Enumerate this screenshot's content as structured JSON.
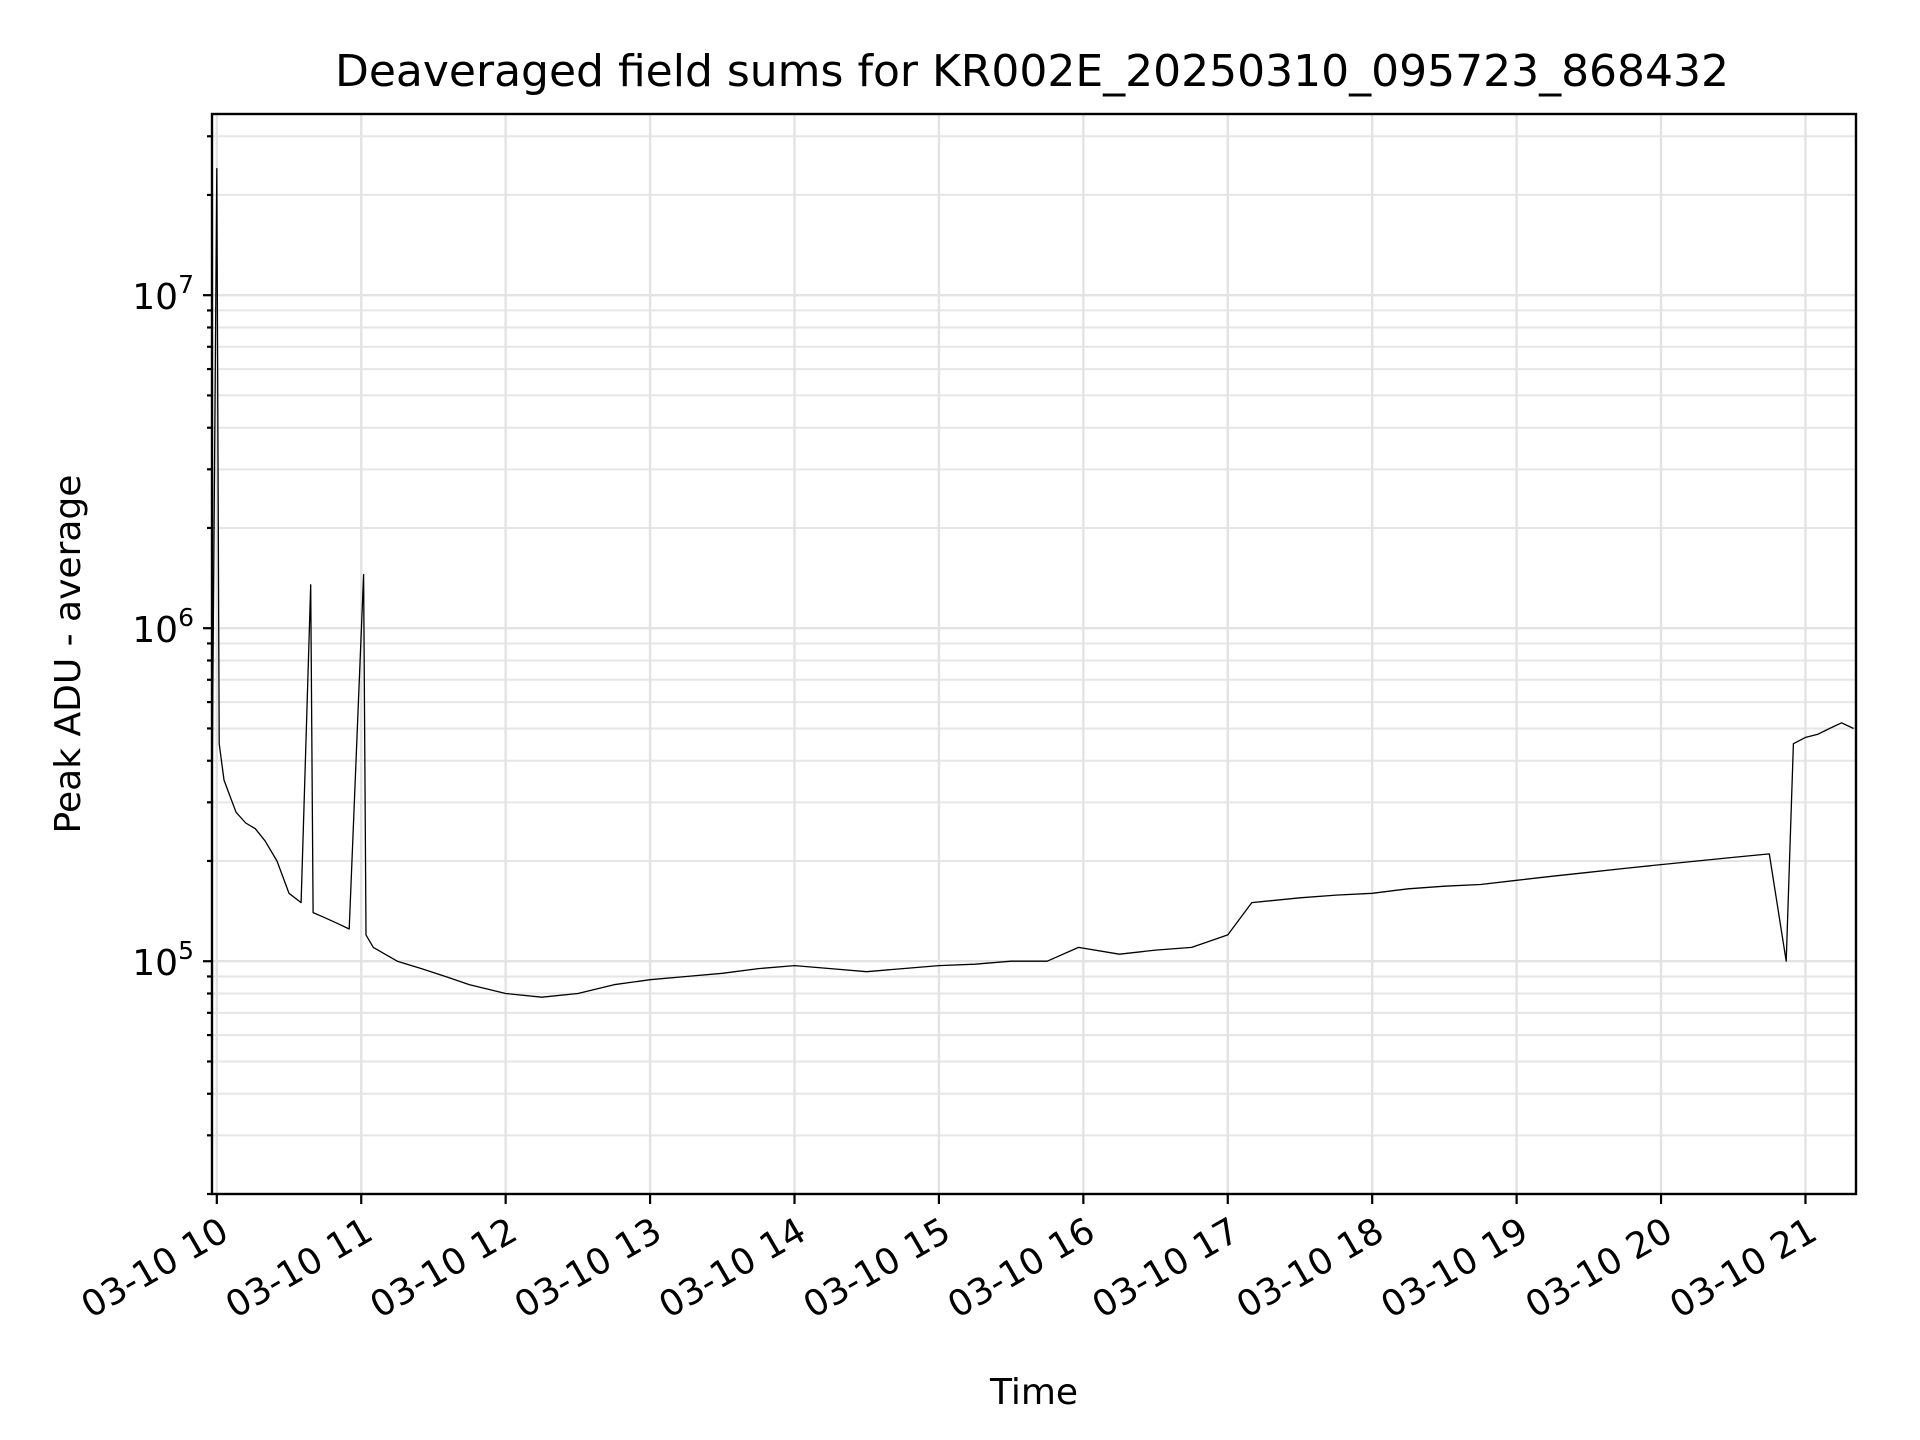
{
  "chart_data": {
    "type": "line",
    "title": "Deaveraged field sums for KR002E_20250310_095723_868432",
    "xlabel": "Time",
    "ylabel": "Peak ADU - average",
    "yscale": "log",
    "ylim": [
      20000,
      35000000
    ],
    "xlim": [
      "2025-03-10 09:58",
      "2025-03-10 21:21"
    ],
    "x_tick_labels": [
      "03-10 10",
      "03-10 11",
      "03-10 12",
      "03-10 13",
      "03-10 14",
      "03-10 15",
      "03-10 16",
      "03-10 17",
      "03-10 18",
      "03-10 19",
      "03-10 20",
      "03-10 21"
    ],
    "y_ticks": [
      {
        "value": 100000,
        "base": "10",
        "exp": "5"
      },
      {
        "value": 1000000,
        "base": "10",
        "exp": "6"
      },
      {
        "value": 10000000,
        "base": "10",
        "exp": "7"
      }
    ],
    "grid": true,
    "legend": "none",
    "line_color": "#000000",
    "series": [
      {
        "x": [
          "2025-03-10 09:58",
          "2025-03-10 10:00",
          "2025-03-10 10:01",
          "2025-03-10 10:03",
          "2025-03-10 10:05",
          "2025-03-10 10:08",
          "2025-03-10 10:12",
          "2025-03-10 10:16",
          "2025-03-10 10:20",
          "2025-03-10 10:25",
          "2025-03-10 10:30",
          "2025-03-10 10:35",
          "2025-03-10 10:39",
          "2025-03-10 10:40",
          "2025-03-10 10:45",
          "2025-03-10 10:50",
          "2025-03-10 10:55",
          "2025-03-10 11:01",
          "2025-03-10 11:02",
          "2025-03-10 11:05",
          "2025-03-10 11:15",
          "2025-03-10 11:25",
          "2025-03-10 11:35",
          "2025-03-10 11:45",
          "2025-03-10 12:00",
          "2025-03-10 12:15",
          "2025-03-10 12:30",
          "2025-03-10 12:45",
          "2025-03-10 13:00",
          "2025-03-10 13:15",
          "2025-03-10 13:30",
          "2025-03-10 13:45",
          "2025-03-10 14:00",
          "2025-03-10 14:15",
          "2025-03-10 14:30",
          "2025-03-10 14:45",
          "2025-03-10 15:00",
          "2025-03-10 15:15",
          "2025-03-10 15:30",
          "2025-03-10 15:45",
          "2025-03-10 15:58",
          "2025-03-10 16:15",
          "2025-03-10 16:30",
          "2025-03-10 16:45",
          "2025-03-10 17:00",
          "2025-03-10 17:10",
          "2025-03-10 17:30",
          "2025-03-10 17:45",
          "2025-03-10 18:00",
          "2025-03-10 18:15",
          "2025-03-10 18:30",
          "2025-03-10 18:45",
          "2025-03-10 19:00",
          "2025-03-10 19:15",
          "2025-03-10 19:30",
          "2025-03-10 19:45",
          "2025-03-10 20:00",
          "2025-03-10 20:15",
          "2025-03-10 20:30",
          "2025-03-10 20:45",
          "2025-03-10 20:52",
          "2025-03-10 20:55",
          "2025-03-10 21:00",
          "2025-03-10 21:05",
          "2025-03-10 21:10",
          "2025-03-10 21:15",
          "2025-03-10 21:20"
        ],
        "y": [
          300000,
          24000000,
          450000,
          350000,
          320000,
          280000,
          260000,
          250000,
          230000,
          200000,
          160000,
          150000,
          1350000,
          140000,
          135000,
          130000,
          125000,
          1450000,
          120000,
          110000,
          100000,
          95000,
          90000,
          85000,
          80000,
          78000,
          80000,
          85000,
          88000,
          90000,
          92000,
          95000,
          97000,
          95000,
          93000,
          95000,
          97000,
          98000,
          100000,
          100000,
          110000,
          105000,
          108000,
          110000,
          120000,
          150000,
          155000,
          158000,
          160000,
          165000,
          168000,
          170000,
          175000,
          180000,
          185000,
          190000,
          195000,
          200000,
          205000,
          210000,
          100000,
          450000,
          470000,
          480000,
          500000,
          520000,
          500000
        ]
      }
    ]
  }
}
